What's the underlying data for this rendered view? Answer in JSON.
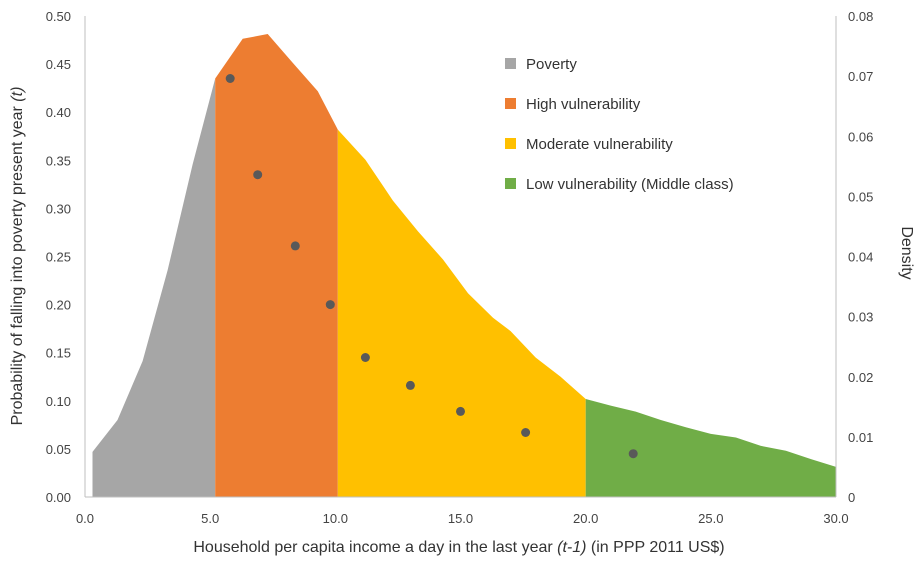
{
  "chart_data": {
    "type": "area",
    "xlabel": {
      "prefix": "Household per capita income a day in the last year ",
      "italic": "(t-1)",
      "suffix": "  (in PPP 2011 US$)"
    },
    "ylabel_left": {
      "prefix": "Probability of falling  into poverty  present  year ",
      "italic": "(t)"
    },
    "ylabel_right": "Density",
    "xlim": [
      0,
      30
    ],
    "ylim_left": [
      0,
      0.5
    ],
    "ylim_right": [
      0,
      0.08
    ],
    "x_ticks": [
      "0.0",
      "5.0",
      "10.0",
      "15.0",
      "20.0",
      "25.0",
      "30.0"
    ],
    "y_left_ticks": [
      "0.00",
      "0.05",
      "0.10",
      "0.15",
      "0.20",
      "0.25",
      "0.30",
      "0.35",
      "0.40",
      "0.45",
      "0.50"
    ],
    "y_right_ticks": [
      "0",
      "0.01",
      "0.02",
      "0.03",
      "0.04",
      "0.05",
      "0.06",
      "0.07",
      "0.08"
    ],
    "legend": [
      {
        "label": "Poverty",
        "color": "#a6a6a6"
      },
      {
        "label": "High vulnerability",
        "color": "#ed7d31"
      },
      {
        "label": "Moderate vulnerability",
        "color": "#ffc000"
      },
      {
        "label": "Low vulnerability (Middle class)",
        "color": "#70ad47"
      }
    ],
    "legend_position": "top-right",
    "density_curve": {
      "axis": "right",
      "x": [
        0.3,
        1.3,
        2.3,
        3.3,
        4.3,
        5.2,
        6.3,
        7.3,
        8.3,
        9.3,
        10.1,
        11.2,
        12.3,
        13.3,
        14.3,
        15.3,
        16.3,
        17.0,
        18.0,
        19.0,
        20.0,
        21.0,
        22.0,
        23.0,
        24.0,
        25.0,
        26.0,
        27.0,
        28.0,
        29.0,
        30.0
      ],
      "y": [
        0.0075,
        0.0128,
        0.0226,
        0.0377,
        0.0553,
        0.0696,
        0.0762,
        0.077,
        0.0722,
        0.0675,
        0.0611,
        0.0561,
        0.0493,
        0.0442,
        0.0395,
        0.0339,
        0.0298,
        0.0276,
        0.0232,
        0.02,
        0.0163,
        0.0152,
        0.0142,
        0.0128,
        0.0116,
        0.0105,
        0.0099,
        0.0085,
        0.0077,
        0.0063,
        0.005
      ]
    },
    "segments": [
      {
        "label": "Poverty",
        "x_from": 0.3,
        "x_to": 5.2,
        "color": "#a6a6a6"
      },
      {
        "label": "High vulnerability",
        "x_from": 5.2,
        "x_to": 10.1,
        "color": "#ed7d31"
      },
      {
        "label": "Moderate vulnerability",
        "x_from": 10.1,
        "x_to": 20.0,
        "color": "#ffc000"
      },
      {
        "label": "Low vulnerability (Middle class)",
        "x_from": 20.0,
        "x_to": 30.0,
        "color": "#70ad47"
      }
    ],
    "probability_points": {
      "axis": "left",
      "color": "#595959",
      "x": [
        5.8,
        6.9,
        8.4,
        9.8,
        11.2,
        13.0,
        15.0,
        17.6,
        21.9
      ],
      "y": [
        0.435,
        0.335,
        0.261,
        0.2,
        0.145,
        0.116,
        0.089,
        0.067,
        0.045
      ]
    },
    "grid": false
  }
}
